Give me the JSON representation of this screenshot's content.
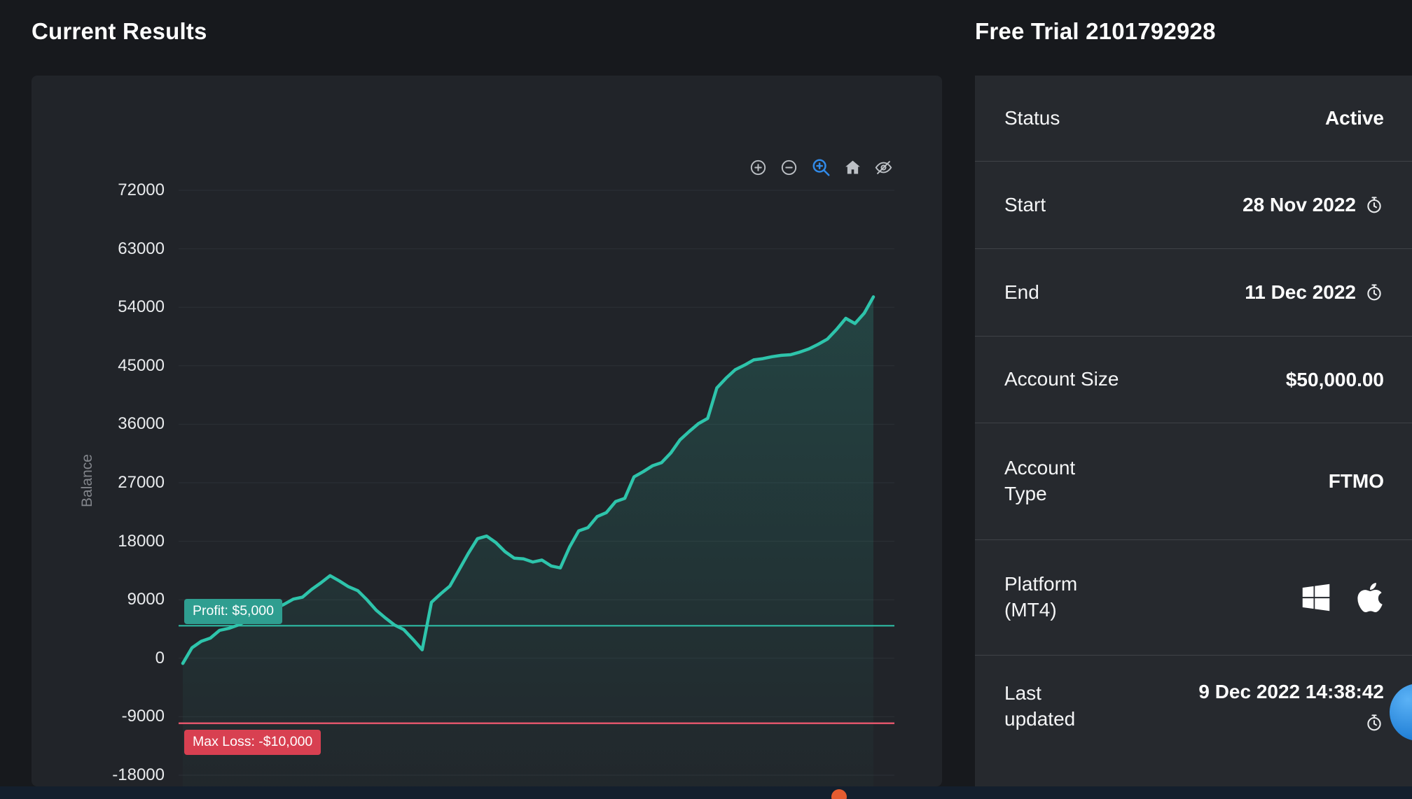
{
  "page": {
    "left_title": "Current Results",
    "right_title": "Free Trial 2101792928"
  },
  "chart": {
    "profit_badge": "Profit: $5,000",
    "max_loss_badge": "Max Loss: -$10,000",
    "toolbar_icons": [
      "zoom-in",
      "zoom-out",
      "selection-zoom",
      "home",
      "eye-off"
    ]
  },
  "chart_data": {
    "type": "line",
    "ylabel": "Balance",
    "yticks": [
      72000,
      63000,
      54000,
      45000,
      36000,
      27000,
      18000,
      9000,
      0,
      -9000,
      -18000
    ],
    "ylim": [
      -21500,
      76000
    ],
    "grid": "horizontal",
    "series": [
      {
        "name": "Balance",
        "values": [
          -800,
          1600,
          2600,
          3100,
          4300,
          4600,
          5100,
          5800,
          6100,
          7300,
          7600,
          8300,
          9100,
          9400,
          10600,
          11600,
          12700,
          11900,
          11000,
          10400,
          9000,
          7400,
          6200,
          5100,
          4400,
          2900,
          1300,
          8600,
          9900,
          11100,
          13600,
          16100,
          18400,
          18800,
          17800,
          16400,
          15400,
          15300,
          14800,
          15100,
          14200,
          13900,
          17100,
          19600,
          20100,
          21800,
          22400,
          24100,
          24600,
          27900,
          28700,
          29600,
          30100,
          31600,
          33600,
          34900,
          36100,
          36900,
          41600,
          43100,
          44400,
          45100,
          45900,
          46100,
          46400,
          46600,
          46700,
          47100,
          47600,
          48300,
          49100,
          50600,
          52300,
          51500,
          53100,
          55600
        ]
      }
    ],
    "reference_lines": {
      "profit_target": 5000,
      "max_loss": -10000
    },
    "colors": {
      "line": "#2ec4ab",
      "area_fill": "#2ec4ab",
      "profit_line": "#2ec4ab",
      "max_loss_line": "#e0556a",
      "profit_badge_bg": "#2f9e90",
      "max_loss_badge_bg": "#d84051"
    }
  },
  "details": {
    "rows": [
      {
        "label": "Status",
        "value": "Active"
      },
      {
        "label": "Start",
        "value": "28 Nov 2022",
        "icon": "clock"
      },
      {
        "label": "End",
        "value": "11 Dec 2022",
        "icon": "clock"
      },
      {
        "label": "Account Size",
        "value": "$50,000.00"
      },
      {
        "label": "Account Type",
        "value": "FTMO"
      },
      {
        "label": "Platform (MT4)",
        "value": "",
        "icons": [
          "windows",
          "apple"
        ]
      },
      {
        "label": "Last updated",
        "value": "9 Dec 2022 14:38:42",
        "icon": "clock"
      }
    ]
  }
}
